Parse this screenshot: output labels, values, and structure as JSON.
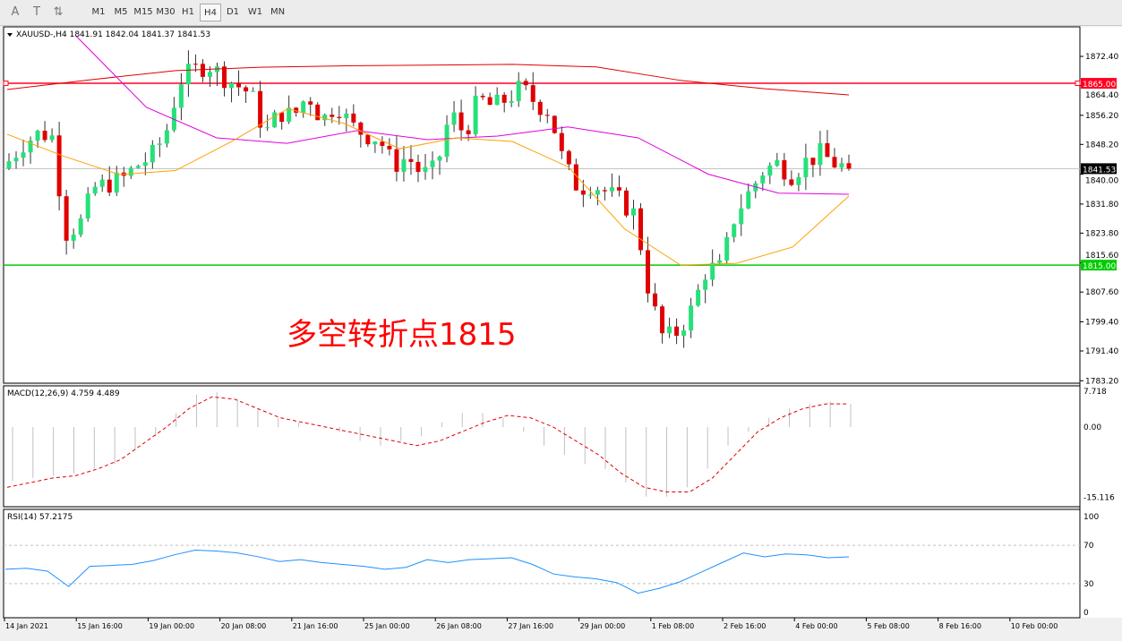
{
  "toolbar": {
    "tools": [
      "A",
      "T",
      "⇅"
    ],
    "timeframes": [
      "M1",
      "M5",
      "M15",
      "M30",
      "H1",
      "H4",
      "D1",
      "W1",
      "MN"
    ],
    "active": "H4"
  },
  "chart": {
    "header": "XAUUSD-,H4  1841.91 1842.04 1841.37 1841.53",
    "annotation": "多空转折点1815",
    "price_axis": [
      "1872.40",
      "1864.40",
      "1856.20",
      "1848.20",
      "1840.00",
      "1831.80",
      "1823.80",
      "1815.60",
      "1807.60",
      "1799.40",
      "1791.40",
      "1783.20"
    ],
    "levels": [
      {
        "label": "1865.00",
        "price": 1865.0,
        "color": "#ff0020"
      },
      {
        "label": "1815.00",
        "price": 1815.0,
        "color": "#00cc00"
      }
    ],
    "current": {
      "label": "1841.53",
      "price": 1841.53
    },
    "time_labels": [
      "14 Jan 2021",
      "15 Jan 16:00",
      "19 Jan 00:00",
      "20 Jan 08:00",
      "21 Jan 16:00",
      "25 Jan 00:00",
      "26 Jan 08:00",
      "27 Jan 16:00",
      "29 Jan 00:00",
      "1 Feb 08:00",
      "2 Feb 16:00",
      "4 Feb 00:00",
      "5 Feb 08:00",
      "8 Feb 16:00",
      "10 Feb 00:00"
    ],
    "closes": [
      1843.6,
      1848.5,
      1851,
      1851,
      1823.9,
      1826.4,
      1836.2,
      1837.4,
      1838.7,
      1842.4,
      1844.8,
      1851,
      1865.8,
      1868.7,
      1870.2,
      1867,
      1864.5,
      1862.1,
      1851,
      1857.1,
      1855.9,
      1862.1,
      1854.7,
      1859.6,
      1853.4,
      1851,
      1849.8,
      1842.4,
      1844.8,
      1839.9,
      1841.1,
      1857.1,
      1851,
      1860.8,
      1858.4,
      1860.8,
      1863.8,
      1859.6,
      1857.1,
      1842.4,
      1836.2,
      1837.4,
      1835,
      1832.5,
      1828.8,
      1806.6,
      1794.4,
      1796.8,
      1803,
      1814.1,
      1814.1,
      1828.8,
      1835,
      1841.1,
      1843,
      1839.9,
      1843.6,
      1845.6,
      1843,
      1841.5
    ],
    "ma_slow": [
      1863.3,
      1866,
      1868.5,
      1869.4,
      1869.8,
      1870,
      1870.2,
      1869.5,
      1865.8,
      1863.5,
      1861.8
    ],
    "ma_mid": [
      1878,
      1858.4,
      1850,
      1848.5,
      1852,
      1849.5,
      1850.5,
      1853,
      1850,
      1840,
      1834.8,
      1834.5
    ],
    "ma_fast": [
      1851,
      1845,
      1839.9,
      1841,
      1849,
      1858,
      1854,
      1847,
      1850,
      1849,
      1842,
      1825,
      1815,
      1815.5,
      1820,
      1834
    ]
  },
  "macd": {
    "label": "MACD(12,26,9) 4.759 4.489",
    "axis": [
      "7.718",
      "0.00",
      "-15.116"
    ],
    "hist": [
      -11.6,
      -11,
      -10.5,
      -10,
      -9,
      -8,
      -5,
      -2,
      3,
      7,
      7.5,
      6,
      4,
      2,
      1,
      0,
      -1,
      -3,
      -4,
      -3,
      -2,
      1,
      3,
      3,
      2,
      -1,
      -4,
      -6,
      -8,
      -9,
      -12,
      -15,
      -15,
      -13,
      -9,
      -4,
      -1,
      2,
      4,
      5,
      5.5,
      5
    ],
    "signal": [
      -13,
      -12,
      -11,
      -10.5,
      -9,
      -7,
      -3.5,
      0,
      4,
      6.5,
      6,
      4,
      2,
      1,
      0,
      -1,
      -2,
      -3,
      -4,
      -3,
      -1,
      1,
      2.5,
      2,
      0,
      -3,
      -6,
      -10,
      -13,
      -14,
      -14,
      -11,
      -6,
      -1,
      2,
      4,
      5,
      5
    ]
  },
  "rsi": {
    "label": "RSI(14) 57.2175",
    "axis": [
      "100",
      "70",
      "30",
      "0"
    ],
    "values": [
      45,
      46,
      43,
      27,
      48,
      49,
      50,
      54,
      60,
      65,
      64,
      62,
      58,
      53,
      55,
      52,
      50,
      48,
      45,
      47,
      55,
      52,
      55,
      56,
      57,
      50,
      40,
      37,
      35,
      31,
      20,
      25,
      32,
      42,
      52,
      62,
      58,
      61,
      60,
      57,
      58
    ]
  }
}
